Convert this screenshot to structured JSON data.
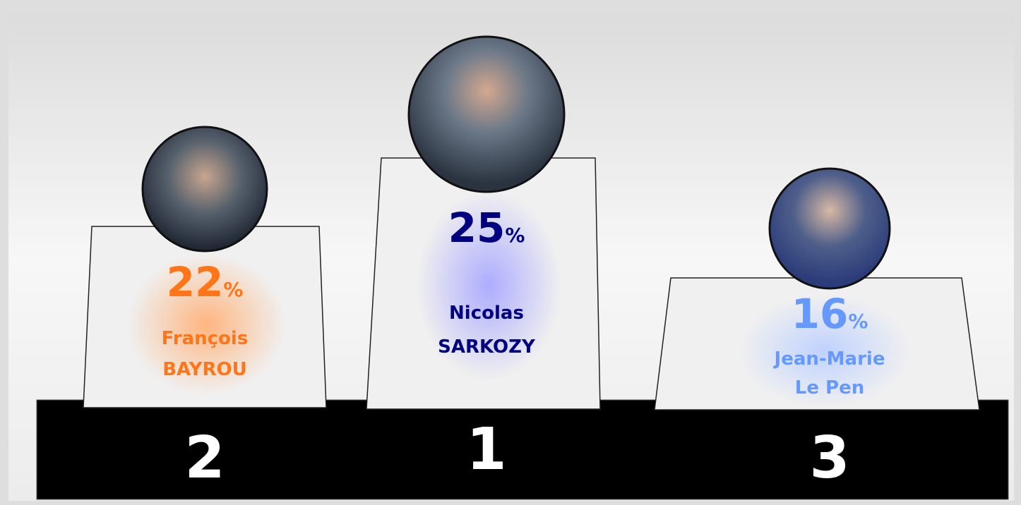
{
  "podium": {
    "places": [
      {
        "rank": 2,
        "percent": 22,
        "unit": "%",
        "name": [
          "François",
          "BAYROU"
        ],
        "color": "#ff7518",
        "glow": "#ffb27a"
      },
      {
        "rank": 1,
        "percent": 25,
        "unit": "%",
        "name": [
          "Nicolas",
          "SARKOZY"
        ],
        "color": "#000080",
        "glow": "#a9a9ff"
      },
      {
        "rank": 3,
        "percent": 16,
        "unit": "%",
        "name": [
          "Jean-Marie",
          "Le Pen"
        ],
        "color": "#6699ff",
        "glow": "#bcd0ff"
      }
    ]
  }
}
